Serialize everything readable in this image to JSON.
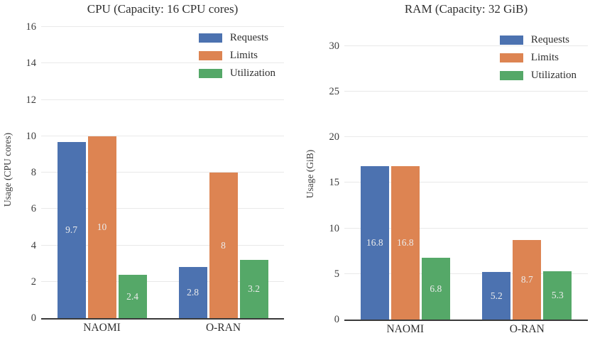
{
  "chart_data": [
    {
      "id": "cpu",
      "type": "bar",
      "title": "CPU (Capacity: 16 CPU cores)",
      "ylabel": "Usage (CPU cores)",
      "categories": [
        "NAOMI",
        "O-RAN"
      ],
      "series": [
        {
          "name": "Requests",
          "color": "#4C72B0",
          "values": [
            9.7,
            2.8
          ]
        },
        {
          "name": "Limits",
          "color": "#DD8452",
          "values": [
            10,
            8
          ]
        },
        {
          "name": "Utilization",
          "color": "#55A868",
          "values": [
            2.4,
            3.2
          ]
        }
      ],
      "yticks": [
        0,
        2,
        4,
        6,
        8,
        10,
        12,
        14,
        16
      ],
      "ylim": [
        0,
        16.4
      ],
      "grid": true,
      "legend_position": "upper right",
      "grid_color": "#e9e9e9",
      "axis_color": "#3a3a3a",
      "bar_label_color": "#ebebeb"
    },
    {
      "id": "ram",
      "type": "bar",
      "title": "RAM (Capacity: 32 GiB)",
      "ylabel": "Usage (GiB)",
      "categories": [
        "NAOMI",
        "O-RAN"
      ],
      "series": [
        {
          "name": "Requests",
          "color": "#4C72B0",
          "values": [
            16.8,
            5.2
          ]
        },
        {
          "name": "Limits",
          "color": "#DD8452",
          "values": [
            16.8,
            8.7
          ]
        },
        {
          "name": "Utilization",
          "color": "#55A868",
          "values": [
            6.8,
            5.3
          ]
        }
      ],
      "yticks": [
        0,
        5,
        10,
        15,
        20,
        25,
        30
      ],
      "ylim": [
        0,
        32
      ],
      "grid": true,
      "legend_position": "upper right",
      "grid_color": "#e9e9e9",
      "axis_color": "#3a3a3a",
      "bar_label_color": "#ebebeb"
    }
  ]
}
